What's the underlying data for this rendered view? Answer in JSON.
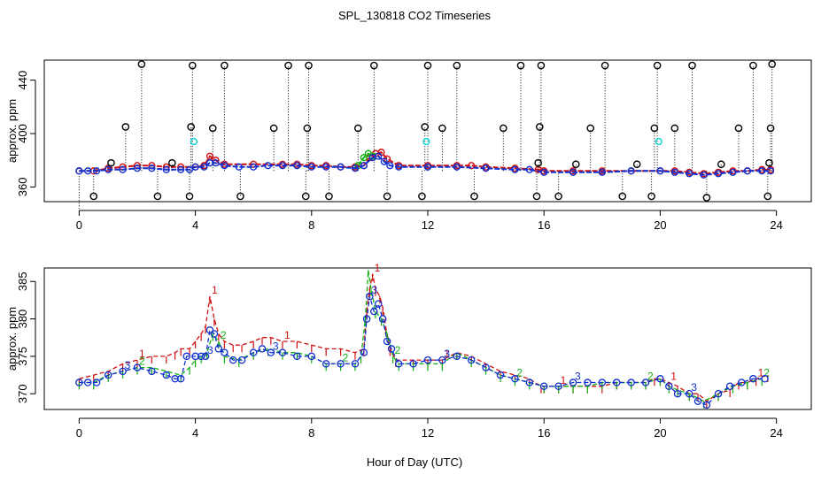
{
  "title": "SPL_130818  CO2 Timeseries",
  "colors": {
    "series1": "#d01010",
    "series2": "#10b010",
    "series3": "#1030d0",
    "outlier": "#000000",
    "cyan": "#00d8d8",
    "axis": "#000000"
  },
  "chart_data": [
    {
      "type": "scatter",
      "panel": "top",
      "xlabel": "",
      "ylabel": "approx. ppm",
      "xlim": [
        -1.2,
        25.2
      ],
      "ylim": [
        349,
        455
      ],
      "xticks": [
        0,
        4,
        8,
        12,
        16,
        20,
        24
      ],
      "yticks": [
        360,
        400,
        440
      ],
      "series": [
        {
          "name": "1",
          "color": "red",
          "x": [
            0.0,
            0.5,
            1.0,
            1.5,
            2.0,
            2.5,
            3.0,
            3.5,
            4.0,
            4.3,
            4.5,
            4.7,
            5.0,
            6.0,
            7.0,
            7.5,
            8.0,
            8.5,
            9.0,
            9.5,
            9.8,
            10.0,
            10.2,
            10.4,
            10.6,
            11.0,
            12.0,
            13.0,
            13.5,
            14.0,
            15.0,
            15.8,
            16.0,
            17.0,
            18.0,
            19.0,
            20.0,
            20.5,
            21.0,
            21.5,
            22.0,
            22.5,
            23.0,
            23.5,
            23.8
          ],
          "y": [
            372,
            372,
            374,
            375,
            376,
            376,
            375,
            375,
            375,
            376,
            383,
            380,
            377,
            377,
            377,
            377,
            376,
            376,
            375,
            375,
            376,
            382,
            385,
            386,
            381,
            376,
            376,
            376,
            376,
            375,
            374,
            373,
            372,
            372,
            372,
            372,
            372,
            372,
            371,
            370,
            371,
            372,
            372,
            373,
            373
          ]
        },
        {
          "name": "2",
          "color": "green",
          "x": [
            9.6,
            9.8,
            9.95,
            10.1
          ],
          "y": [
            376,
            382,
            385,
            383
          ]
        },
        {
          "name": "3",
          "color": "blue",
          "x": [
            0.0,
            0.3,
            0.6,
            1.0,
            1.5,
            2.0,
            2.5,
            3.0,
            3.5,
            3.8,
            4.0,
            4.3,
            4.5,
            4.7,
            5.0,
            5.5,
            6.0,
            6.5,
            7.0,
            7.5,
            8.0,
            8.5,
            9.0,
            9.5,
            9.8,
            10.1,
            10.3,
            10.5,
            10.7,
            11.0,
            12.0,
            13.0,
            14.0,
            15.0,
            15.5,
            16.0,
            17.0,
            18.0,
            19.0,
            20.0,
            20.5,
            21.0,
            21.5,
            22.0,
            22.5,
            23.0,
            23.5,
            23.8
          ],
          "y": [
            372,
            372,
            372,
            373,
            373,
            374,
            374,
            373,
            373,
            373,
            375,
            375,
            378,
            378,
            376,
            375,
            375,
            376,
            376,
            376,
            375,
            375,
            375,
            374,
            376,
            382,
            383,
            379,
            376,
            375,
            375,
            375,
            374,
            373,
            373,
            371,
            371,
            371,
            372,
            372,
            371,
            370,
            369,
            370,
            371,
            372,
            372,
            372
          ]
        },
        {
          "name": "outliers",
          "color": "black",
          "x": [
            0.5,
            1.1,
            1.6,
            2.15,
            2.7,
            3.2,
            3.8,
            3.85,
            3.9,
            4.6,
            5.0,
            5.55,
            6.7,
            7.2,
            7.8,
            7.85,
            7.9,
            8.6,
            9.6,
            10.15,
            10.6,
            11.8,
            11.9,
            12.0,
            12.5,
            13.0,
            13.6,
            14.6,
            15.2,
            15.75,
            15.8,
            15.85,
            15.9,
            16.5,
            17.1,
            17.6,
            18.1,
            18.7,
            19.2,
            19.7,
            19.8,
            19.9,
            20.5,
            21.1,
            21.6,
            22.1,
            22.7,
            23.2,
            23.7,
            23.75,
            23.8,
            23.85
          ],
          "y": [
            353,
            378,
            405,
            452,
            353,
            378,
            353,
            405,
            451,
            404,
            451,
            353,
            404,
            451,
            353,
            404,
            451,
            353,
            404,
            451,
            353,
            353,
            405,
            451,
            404,
            451,
            353,
            404,
            451,
            353,
            378,
            405,
            451,
            353,
            377,
            404,
            451,
            353,
            377,
            353,
            404,
            451,
            404,
            451,
            352,
            377,
            404,
            451,
            353,
            378,
            404,
            452
          ]
        },
        {
          "name": "cyan",
          "color": "cyan",
          "x": [
            3.95,
            11.95,
            19.95
          ],
          "y": [
            394,
            394,
            394
          ]
        }
      ]
    },
    {
      "type": "line",
      "panel": "bottom",
      "xlabel": "Hour of Day (UTC)",
      "ylabel": "approx. ppm",
      "xlim": [
        -1.2,
        25.2
      ],
      "ylim": [
        367.9,
        386.8
      ],
      "xticks": [
        0,
        4,
        8,
        12,
        16,
        20,
        24
      ],
      "yticks": [
        370,
        375,
        380,
        385
      ],
      "series": [
        {
          "name": "1",
          "color": "red",
          "x": [
            0.0,
            0.5,
            1.0,
            1.5,
            2.0,
            2.5,
            3.0,
            3.3,
            3.5,
            3.8,
            4.0,
            4.2,
            4.35,
            4.5,
            4.65,
            4.8,
            5.0,
            5.3,
            5.6,
            6.0,
            6.3,
            6.6,
            7.0,
            7.5,
            8.0,
            8.5,
            9.0,
            9.5,
            9.8,
            9.9,
            10.0,
            10.1,
            10.2,
            10.35,
            10.45,
            10.55,
            10.7,
            10.9,
            11.5,
            12.0,
            12.5,
            13.0,
            13.5,
            14.0,
            14.5,
            15.0,
            15.5,
            15.9,
            16.0,
            16.5,
            17.0,
            17.5,
            18.0,
            18.5,
            19.0,
            19.5,
            19.8,
            20.0,
            20.3,
            20.6,
            21.0,
            21.3,
            21.6,
            22.0,
            22.4,
            22.7,
            23.0,
            23.3,
            23.7
          ],
          "y": [
            372.0,
            372.5,
            373.0,
            374.0,
            374.5,
            375.0,
            375.0,
            375.5,
            376.0,
            376.0,
            377.0,
            378.0,
            379.0,
            383.0,
            380.0,
            378.0,
            377.0,
            376.5,
            376.5,
            377.0,
            377.5,
            377.5,
            377.0,
            377.0,
            376.5,
            376.0,
            376.0,
            375.5,
            376.0,
            381.0,
            384.0,
            386.0,
            384.0,
            383.0,
            381.5,
            379.0,
            376.0,
            374.5,
            374.5,
            374.5,
            374.5,
            375.5,
            375.0,
            374.0,
            373.0,
            372.5,
            372.0,
            371.0,
            371.0,
            371.0,
            371.0,
            371.0,
            371.0,
            371.5,
            371.5,
            371.5,
            372.0,
            372.0,
            371.5,
            371.0,
            370.0,
            370.0,
            369.0,
            370.0,
            370.5,
            371.5,
            371.5,
            372.0,
            372.5
          ]
        },
        {
          "name": "2",
          "color": "green",
          "x": [
            0.0,
            0.5,
            1.0,
            1.5,
            2.0,
            2.5,
            3.0,
            3.5,
            3.8,
            4.0,
            4.2,
            4.4,
            4.6,
            4.8,
            5.0,
            5.5,
            6.0,
            6.5,
            7.0,
            7.5,
            8.0,
            8.5,
            9.0,
            9.5,
            9.7,
            9.85,
            9.95,
            10.05,
            10.2,
            10.4,
            10.6,
            10.8,
            11.0,
            11.5,
            12.0,
            12.5,
            13.0,
            13.5,
            14.0,
            14.5,
            15.0,
            15.5,
            16.0,
            16.5,
            17.0,
            17.5,
            18.0,
            18.5,
            19.0,
            19.5,
            20.0,
            20.3,
            20.6,
            21.0,
            21.5,
            22.0,
            22.5,
            23.0,
            23.5
          ],
          "y": [
            371.5,
            371.5,
            372.5,
            373.0,
            373.5,
            373.5,
            373.0,
            372.5,
            373.5,
            374.5,
            375.0,
            375.5,
            378.0,
            377.0,
            375.0,
            374.5,
            375.5,
            376.0,
            375.5,
            375.5,
            375.0,
            374.0,
            374.0,
            374.0,
            375.0,
            380.0,
            386.5,
            384.0,
            381.0,
            380.0,
            378.0,
            375.0,
            374.0,
            374.0,
            374.0,
            374.0,
            375.5,
            374.5,
            373.5,
            372.5,
            372.0,
            371.5,
            371.0,
            371.0,
            371.0,
            371.0,
            371.5,
            371.5,
            371.5,
            371.5,
            372.0,
            371.0,
            370.5,
            370.0,
            369.0,
            370.0,
            371.0,
            371.5,
            372.0
          ]
        },
        {
          "name": "3",
          "color": "blue",
          "x": [
            0.0,
            0.3,
            0.6,
            1.0,
            1.5,
            2.0,
            2.5,
            3.0,
            3.3,
            3.5,
            3.7,
            4.0,
            4.2,
            4.35,
            4.5,
            4.65,
            4.8,
            5.0,
            5.3,
            5.6,
            6.0,
            6.3,
            6.6,
            7.0,
            7.5,
            8.0,
            8.5,
            9.0,
            9.5,
            9.8,
            9.9,
            10.0,
            10.15,
            10.3,
            10.45,
            10.6,
            10.75,
            11.0,
            11.5,
            12.0,
            12.5,
            13.0,
            13.5,
            14.0,
            14.5,
            15.0,
            15.5,
            16.0,
            16.5,
            17.0,
            17.5,
            18.0,
            18.5,
            19.0,
            19.5,
            20.0,
            20.3,
            20.6,
            21.0,
            21.3,
            21.6,
            22.0,
            22.4,
            22.8,
            23.2,
            23.6
          ],
          "y": [
            371.5,
            371.5,
            371.5,
            372.5,
            373.0,
            373.5,
            373.0,
            372.5,
            372.0,
            372.0,
            375.0,
            375.0,
            375.0,
            375.0,
            378.5,
            378.0,
            376.0,
            375.5,
            374.5,
            374.5,
            375.5,
            376.0,
            375.5,
            375.5,
            375.0,
            375.0,
            374.0,
            374.0,
            374.0,
            375.5,
            380.0,
            383.0,
            381.0,
            382.0,
            380.0,
            377.0,
            376.0,
            374.0,
            374.0,
            374.5,
            374.5,
            375.0,
            374.5,
            373.5,
            372.5,
            372.0,
            371.5,
            371.0,
            371.0,
            371.5,
            371.5,
            371.5,
            371.5,
            371.5,
            371.5,
            372.0,
            371.0,
            370.0,
            370.0,
            369.0,
            368.5,
            370.0,
            371.0,
            371.5,
            372.0,
            372.0
          ]
        }
      ]
    }
  ]
}
